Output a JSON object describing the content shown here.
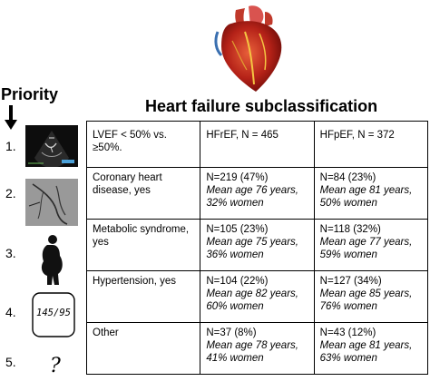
{
  "priority_label": "Priority",
  "title": "Heart failure subclassification",
  "header": [
    "LVEF < 50% vs. ≥50%.",
    "HFrEF, N = 465",
    "HFpEF, N = 372"
  ],
  "rows": [
    {
      "number": "2.",
      "criterion": "Coronary heart disease, yes",
      "hfref": {
        "n": "N=219 (47%)",
        "detail": "Mean age 76 years, 32% women"
      },
      "hfpef": {
        "n": "N=84 (23%)",
        "detail": "Mean age 81 years, 50% women"
      }
    },
    {
      "number": "3.",
      "criterion": "Metabolic syndrome, yes",
      "hfref": {
        "n": "N=105 (23%)",
        "detail": "Mean age 75 years, 36% women"
      },
      "hfpef": {
        "n": "N=118 (32%)",
        "detail": "Mean age 77 years, 59% women"
      }
    },
    {
      "number": "4.",
      "criterion": "Hypertension, yes",
      "hfref": {
        "n": "N=104 (22%)",
        "detail": "Mean age 82 years, 60% women"
      },
      "hfpef": {
        "n": "N=127 (34%)",
        "detail": "Mean age 85 years, 76% women"
      }
    },
    {
      "number": "5.",
      "criterion": "Other",
      "hfref": {
        "n": "N=37 (8%)",
        "detail": "Mean age 78 years, 41% women"
      },
      "hfpef": {
        "n": "N=43 (12%)",
        "detail": "Mean age 81 years, 63% women"
      }
    }
  ],
  "first_number": "1.",
  "bp_display": "145/95",
  "unknown_symbol": "?"
}
